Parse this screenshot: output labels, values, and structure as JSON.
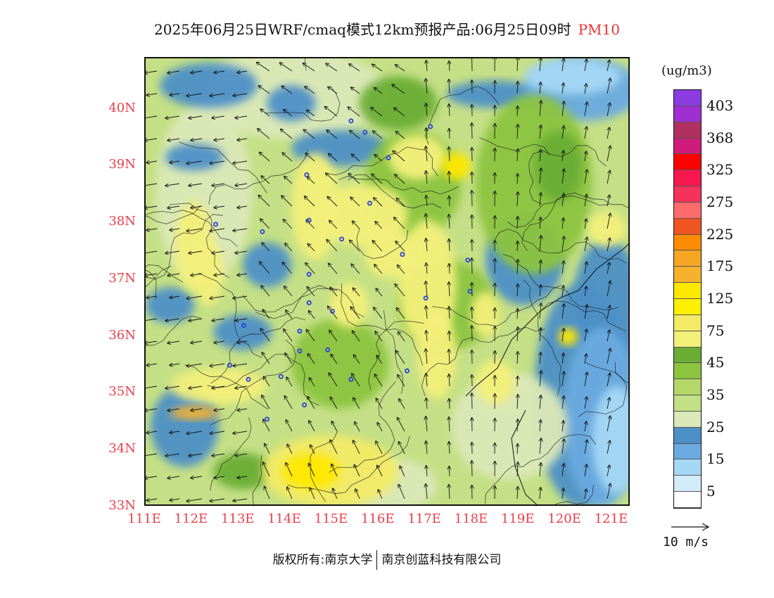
{
  "title": {
    "main": "2025年06月25日WRF/cmaq模式12km预报产品:06月25日09时",
    "pollutant": "PM10"
  },
  "map": {
    "lat_labels": [
      "40N",
      "39N",
      "38N",
      "37N",
      "36N",
      "35N",
      "34N",
      "33N"
    ],
    "lon_labels": [
      "111E",
      "112E",
      "113E",
      "114E",
      "115E",
      "116E",
      "117E",
      "118E",
      "119E",
      "120E",
      "121E"
    ],
    "extent": {
      "lon_min": 111,
      "lon_max": 121.4,
      "lat_min": 33,
      "lat_max": 40.9
    }
  },
  "colorbar": {
    "unit": "(ug/m3)",
    "labels": [
      "403",
      "368",
      "325",
      "275",
      "225",
      "175",
      "125",
      "75",
      "45",
      "35",
      "25",
      "15",
      "5"
    ],
    "colors": [
      "#8a3ce0",
      "#9f2fd0",
      "#b03060",
      "#cf1c7a",
      "#ff0000",
      "#f5174d",
      "#f4325a",
      "#ff6b6b",
      "#ee5522",
      "#ff8c00",
      "#f5a623",
      "#f7b22d",
      "#ffe800",
      "#ffef00",
      "#f3eb66",
      "#f3f07a",
      "#6aad35",
      "#8cc43f",
      "#b5d769",
      "#c4df85",
      "#dbe8b8",
      "#4d90c7",
      "#6aaae0",
      "#a5d8f5",
      "#d3ecfa",
      "#ffffff"
    ]
  },
  "wind_reference": {
    "label": "10 m/s"
  },
  "stations": [
    [
      115.4,
      39.8
    ],
    [
      115.7,
      39.6
    ],
    [
      116.2,
      39.15
    ],
    [
      117.1,
      39.7
    ],
    [
      114.45,
      38.85
    ],
    [
      115.8,
      38.35
    ],
    [
      112.5,
      37.98
    ],
    [
      113.5,
      37.85
    ],
    [
      114.5,
      38.05
    ],
    [
      115.2,
      37.72
    ],
    [
      116.5,
      37.45
    ],
    [
      117.9,
      37.35
    ],
    [
      117.0,
      36.68
    ],
    [
      117.95,
      36.8
    ],
    [
      114.5,
      37.1
    ],
    [
      114.5,
      36.6
    ],
    [
      115.0,
      36.45
    ],
    [
      114.3,
      36.1
    ],
    [
      113.1,
      36.2
    ],
    [
      112.8,
      35.5
    ],
    [
      113.2,
      35.25
    ],
    [
      114.3,
      35.75
    ],
    [
      114.9,
      35.77
    ],
    [
      113.9,
      35.3
    ],
    [
      115.4,
      35.25
    ],
    [
      116.6,
      35.4
    ],
    [
      114.4,
      34.8
    ],
    [
      113.6,
      34.55
    ]
  ],
  "copyright": {
    "left": "版权所有:南京大学",
    "right": "南京创蓝科技有限公司"
  }
}
